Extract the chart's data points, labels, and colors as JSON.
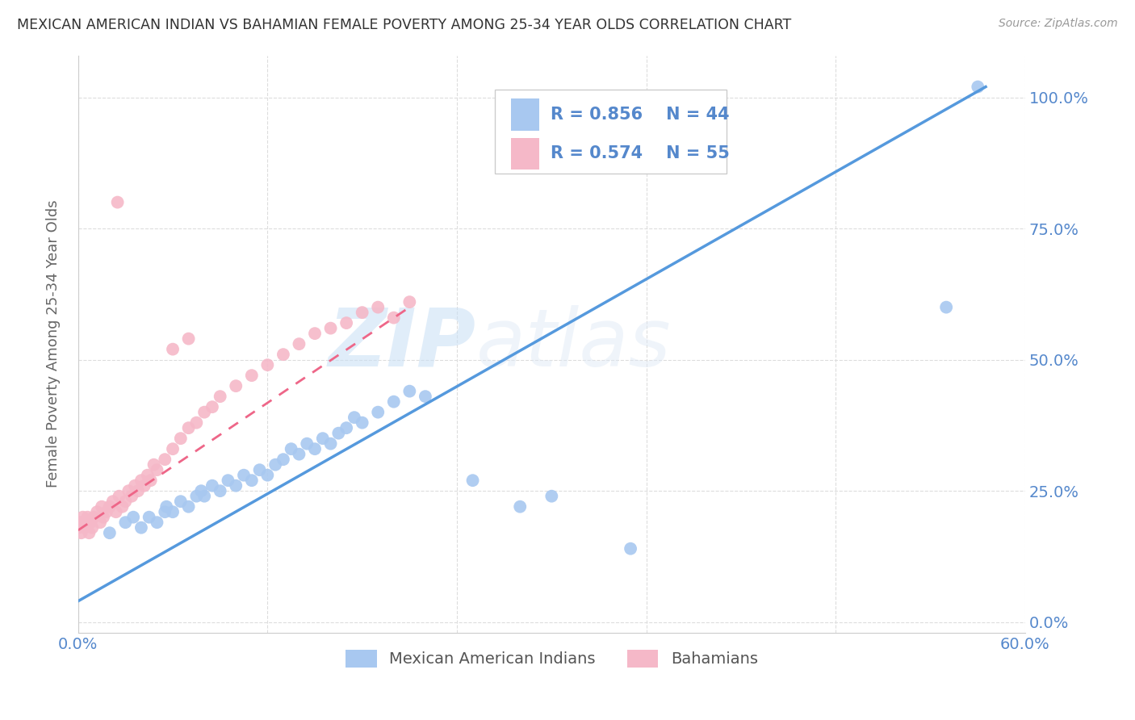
{
  "title": "MEXICAN AMERICAN INDIAN VS BAHAMIAN FEMALE POVERTY AMONG 25-34 YEAR OLDS CORRELATION CHART",
  "source": "Source: ZipAtlas.com",
  "ylabel": "Female Poverty Among 25-34 Year Olds",
  "ytick_labels": [
    "0.0%",
    "25.0%",
    "50.0%",
    "75.0%",
    "100.0%"
  ],
  "ytick_values": [
    0.0,
    0.25,
    0.5,
    0.75,
    1.0
  ],
  "xlim": [
    0.0,
    0.6
  ],
  "ylim": [
    -0.02,
    1.08
  ],
  "legend_r_blue": "R = 0.856",
  "legend_n_blue": "N = 44",
  "legend_r_pink": "R = 0.574",
  "legend_n_pink": "N = 55",
  "legend_label_blue": "Mexican American Indians",
  "legend_label_pink": "Bahamians",
  "watermark_zip": "ZIP",
  "watermark_atlas": "atlas",
  "blue_color": "#a8c8f0",
  "pink_color": "#f5b8c8",
  "blue_line_color": "#5599dd",
  "pink_line_color": "#ee6688",
  "title_color": "#333333",
  "axis_color": "#5588cc",
  "grid_color": "#dddddd",
  "bg_color": "#ffffff",
  "blue_scatter_x": [
    0.02,
    0.03,
    0.035,
    0.04,
    0.045,
    0.05,
    0.055,
    0.056,
    0.06,
    0.065,
    0.07,
    0.075,
    0.078,
    0.08,
    0.085,
    0.09,
    0.095,
    0.1,
    0.105,
    0.11,
    0.115,
    0.12,
    0.125,
    0.13,
    0.135,
    0.14,
    0.145,
    0.15,
    0.155,
    0.16,
    0.165,
    0.17,
    0.175,
    0.18,
    0.19,
    0.2,
    0.21,
    0.22,
    0.25,
    0.28,
    0.3,
    0.35,
    0.55,
    0.57
  ],
  "blue_scatter_y": [
    0.17,
    0.19,
    0.2,
    0.18,
    0.2,
    0.19,
    0.21,
    0.22,
    0.21,
    0.23,
    0.22,
    0.24,
    0.25,
    0.24,
    0.26,
    0.25,
    0.27,
    0.26,
    0.28,
    0.27,
    0.29,
    0.28,
    0.3,
    0.31,
    0.33,
    0.32,
    0.34,
    0.33,
    0.35,
    0.34,
    0.36,
    0.37,
    0.39,
    0.38,
    0.4,
    0.42,
    0.44,
    0.43,
    0.27,
    0.22,
    0.24,
    0.14,
    0.6,
    1.02
  ],
  "pink_scatter_x": [
    0.0,
    0.001,
    0.002,
    0.003,
    0.004,
    0.005,
    0.006,
    0.007,
    0.008,
    0.009,
    0.01,
    0.012,
    0.014,
    0.015,
    0.016,
    0.018,
    0.02,
    0.022,
    0.024,
    0.026,
    0.028,
    0.03,
    0.032,
    0.034,
    0.036,
    0.038,
    0.04,
    0.042,
    0.044,
    0.046,
    0.048,
    0.05,
    0.055,
    0.06,
    0.065,
    0.07,
    0.075,
    0.08,
    0.085,
    0.09,
    0.1,
    0.11,
    0.12,
    0.13,
    0.14,
    0.15,
    0.16,
    0.17,
    0.18,
    0.19,
    0.2,
    0.21,
    0.06,
    0.07,
    0.025
  ],
  "pink_scatter_y": [
    0.18,
    0.19,
    0.17,
    0.2,
    0.18,
    0.19,
    0.2,
    0.17,
    0.19,
    0.18,
    0.2,
    0.21,
    0.19,
    0.22,
    0.2,
    0.21,
    0.22,
    0.23,
    0.21,
    0.24,
    0.22,
    0.23,
    0.25,
    0.24,
    0.26,
    0.25,
    0.27,
    0.26,
    0.28,
    0.27,
    0.3,
    0.29,
    0.31,
    0.33,
    0.35,
    0.37,
    0.38,
    0.4,
    0.41,
    0.43,
    0.45,
    0.47,
    0.49,
    0.51,
    0.53,
    0.55,
    0.56,
    0.57,
    0.59,
    0.6,
    0.58,
    0.61,
    0.52,
    0.54,
    0.8
  ],
  "blue_line_x": [
    0.0,
    0.575
  ],
  "blue_line_y": [
    0.04,
    1.02
  ],
  "pink_line_x": [
    0.0,
    0.21
  ],
  "pink_line_y": [
    0.175,
    0.6
  ]
}
